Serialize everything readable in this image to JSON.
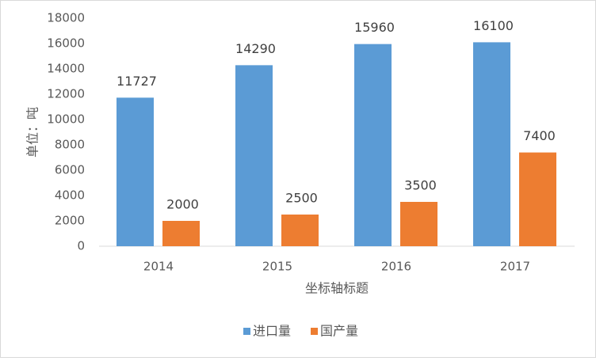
{
  "chart_data": {
    "type": "bar",
    "categories": [
      "2014",
      "2015",
      "2016",
      "2017"
    ],
    "series": [
      {
        "name": "进口量",
        "color": "#5b9bd5",
        "values": [
          11727,
          14290,
          15960,
          16100
        ]
      },
      {
        "name": "国产量",
        "color": "#ed7d31",
        "values": [
          2000,
          2500,
          3500,
          7400
        ]
      }
    ],
    "y_label": "单位：吨",
    "x_label": "坐标轴标题",
    "ylim": [
      0,
      18000
    ],
    "yticks": [
      0,
      2000,
      4000,
      6000,
      8000,
      10000,
      12000,
      14000,
      16000,
      18000
    ],
    "grid": false,
    "legend": "bottom"
  }
}
